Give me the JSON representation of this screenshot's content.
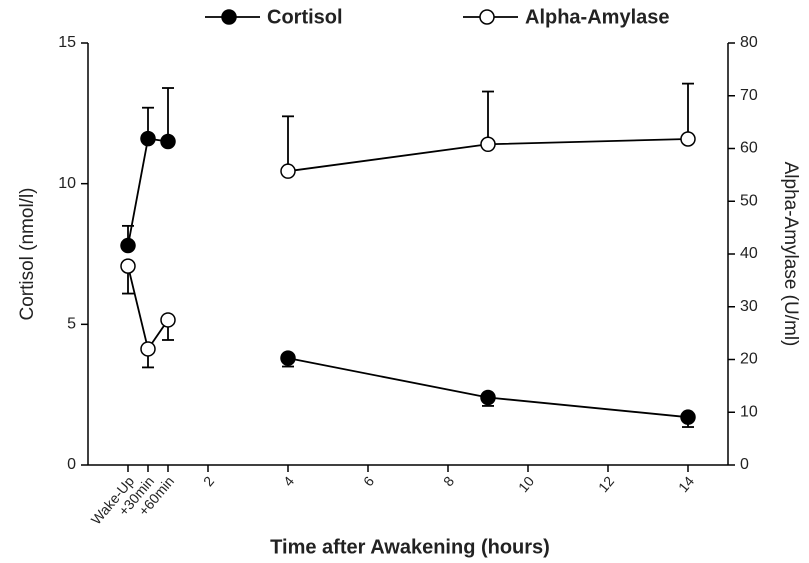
{
  "chart_data": {
    "type": "line",
    "x_label": "Time after Awakening (hours)",
    "y_label": "Cortisol (nmol/l)",
    "y2_label": "Alpha-Amylase (U/ml)",
    "x": [
      0,
      0.5,
      1,
      2,
      4,
      9,
      14
    ],
    "xlim": [
      -1,
      15
    ],
    "xticks": [
      {
        "value": 0,
        "label": "Wake-Up"
      },
      {
        "value": 0.5,
        "label": "+30min"
      },
      {
        "value": 1,
        "label": "+60min"
      },
      2,
      4,
      6,
      8,
      10,
      12,
      14
    ],
    "ylim": [
      0,
      15
    ],
    "yticks": [
      0,
      5,
      10,
      15
    ],
    "y2lim": [
      0,
      80
    ],
    "y2ticks": [
      0,
      10,
      20,
      30,
      40,
      50,
      60,
      70,
      80
    ],
    "series": [
      {
        "name": "Cortisol",
        "color": "#000000",
        "marker": "filled",
        "values": [
          7.8,
          11.6,
          11.5,
          null,
          3.8,
          2.4,
          1.7
        ],
        "errors": [
          0.7,
          1.1,
          1.9,
          null,
          0.3,
          0.3,
          0.35
        ],
        "error_direction": [
          "up",
          "up",
          "up",
          null,
          "down",
          "down",
          "down"
        ]
      },
      {
        "name": "Alpha-Amylase",
        "color": "#000000",
        "marker": "open",
        "axis": "y2",
        "values": [
          37.7,
          22,
          27.5,
          null,
          55.7,
          60.8,
          61.8
        ],
        "errors": [
          5.2,
          3.5,
          3.8,
          null,
          10.4,
          10,
          10.5
        ],
        "error_direction": [
          "down",
          "down",
          "down",
          null,
          "up",
          "up",
          "up"
        ]
      }
    ]
  }
}
